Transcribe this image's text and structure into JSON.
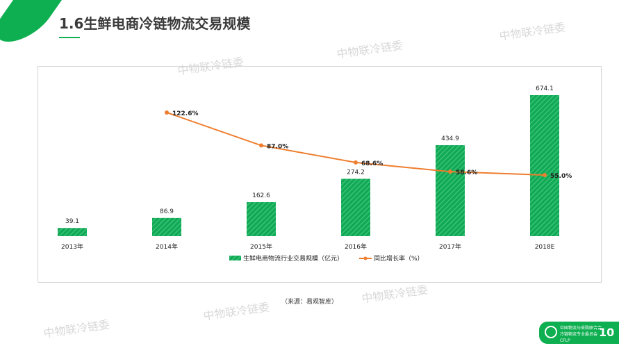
{
  "header": {
    "title": "1.6生鲜电商冷链物流交易规模"
  },
  "watermark": "中物联冷链委",
  "source": "（来源：易观智库）",
  "logo": {
    "org_line1": "中国物流与采购联合会",
    "org_line2": "冷链物流专业委员会",
    "abbr": "CFLP",
    "page": "10"
  },
  "colors": {
    "bar": "#10a955",
    "line": "#ef7d2e"
  },
  "chart_data": {
    "type": "bar+line",
    "categories": [
      "2013年",
      "2014年",
      "2015年",
      "2016年",
      "2017年",
      "2018E"
    ],
    "series": [
      {
        "name": "生鲜电商物流行业交易规模（亿元）",
        "type": "bar",
        "values": [
          39.1,
          86.9,
          162.6,
          274.2,
          434.9,
          674.1
        ],
        "labels": [
          "39.1",
          "86.9",
          "162.6",
          "274.2",
          "434.9",
          "674.1"
        ]
      },
      {
        "name": "同比增长率（%）",
        "type": "line",
        "values": [
          null,
          122.6,
          87.0,
          68.6,
          58.6,
          55.0
        ],
        "labels": [
          "",
          "122.6%",
          "87.0%",
          "68.6%",
          "58.6%",
          "55.0%"
        ]
      }
    ],
    "legend": "bottom"
  }
}
